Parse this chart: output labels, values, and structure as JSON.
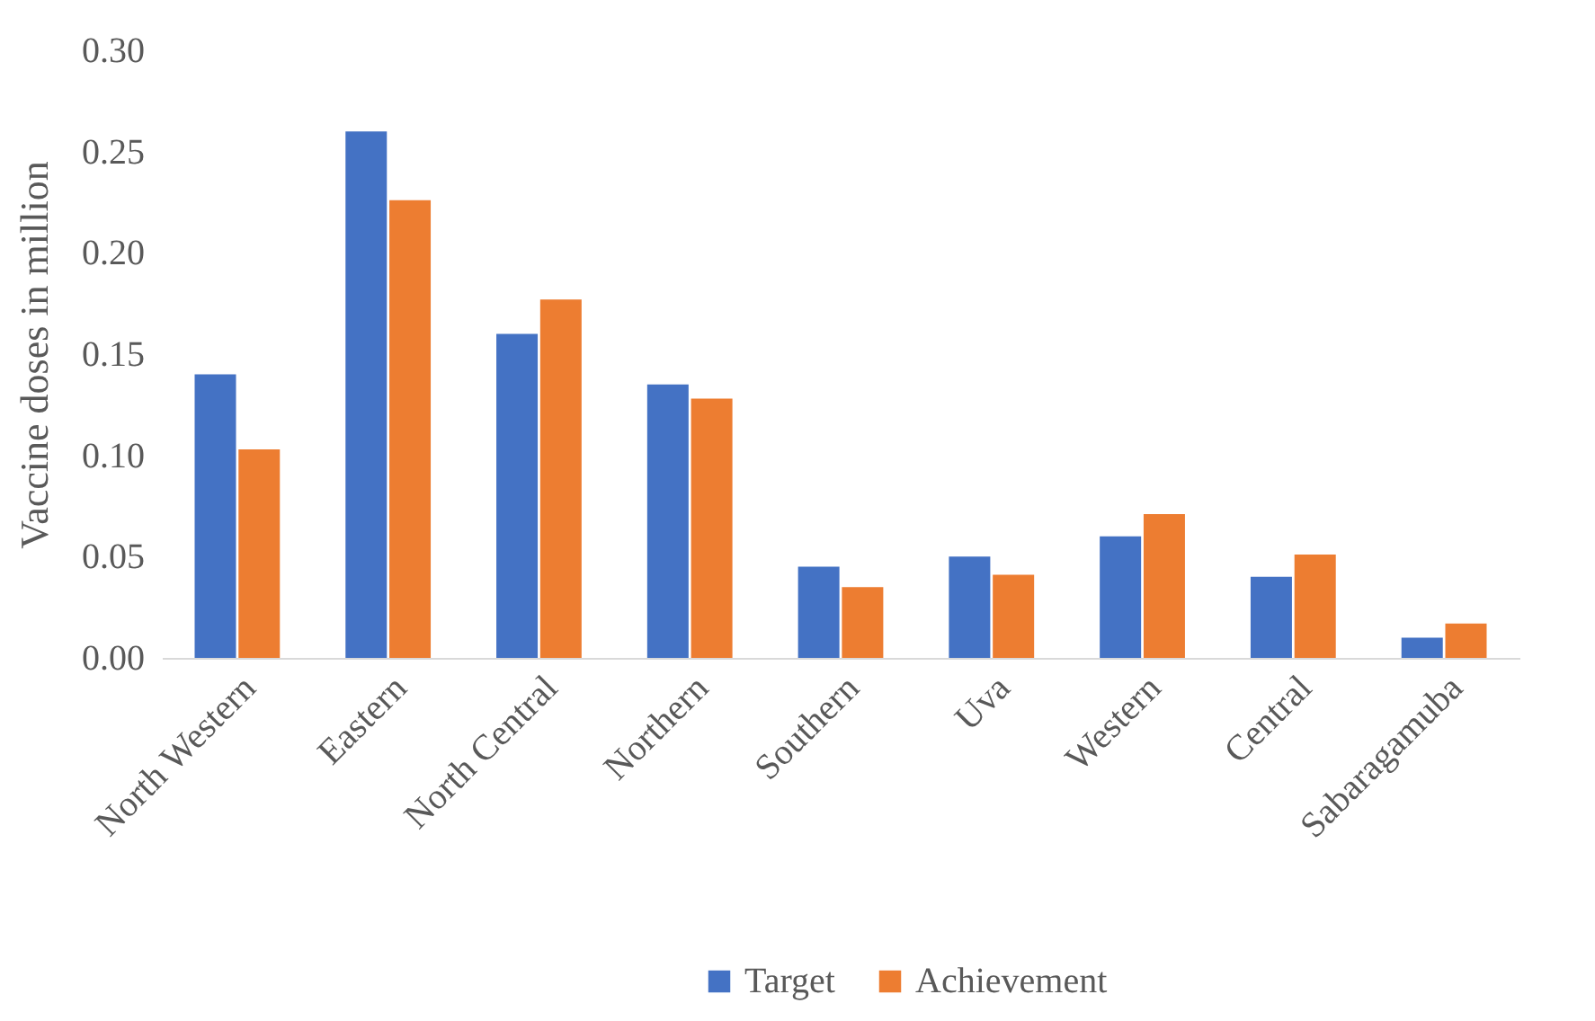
{
  "chart_data": {
    "type": "bar",
    "ylabel": "Vaccine doses in million",
    "categories": [
      "North Western",
      "Eastern",
      "North Central",
      "Northern",
      "Southern",
      "Uva",
      "Western",
      "Central",
      "Sabaragamuba"
    ],
    "series": [
      {
        "name": "Target",
        "color": "#4472c4",
        "values": [
          0.14,
          0.26,
          0.16,
          0.135,
          0.045,
          0.05,
          0.06,
          0.04,
          0.01
        ]
      },
      {
        "name": "Achievement",
        "color": "#ed7d31",
        "values": [
          0.103,
          0.226,
          0.177,
          0.128,
          0.035,
          0.041,
          0.071,
          0.051,
          0.017
        ]
      }
    ],
    "ylim": [
      0,
      0.3
    ],
    "yticks": [
      {
        "value": 0,
        "label": "0.00"
      },
      0.05,
      {
        "value": 0.1,
        "label": "0.10"
      },
      0.15,
      {
        "value": 0.2,
        "label": "0.20"
      },
      0.25,
      {
        "value": 0.3,
        "label": "0.30"
      }
    ],
    "grid": false,
    "legend": "bottom"
  }
}
